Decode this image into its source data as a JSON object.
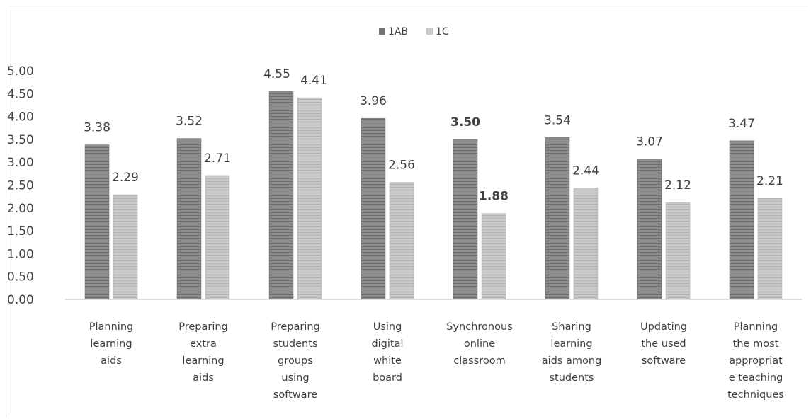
{
  "chart_data": {
    "type": "bar",
    "categories": [
      [
        "Planning",
        "learning",
        "aids"
      ],
      [
        "Preparing",
        "extra",
        "learning",
        "aids"
      ],
      [
        "Preparing",
        "students",
        "groups",
        "using",
        "software"
      ],
      [
        "Using",
        "digital",
        "white",
        "board"
      ],
      [
        "Synchronous",
        "online",
        "classroom"
      ],
      [
        "Sharing",
        "learning",
        "aids among",
        "students"
      ],
      [
        "Updating",
        "the used",
        "software"
      ],
      [
        "Planning",
        "the most",
        "appropriat",
        "e teaching",
        "techniques"
      ]
    ],
    "series": [
      {
        "name": "1AB",
        "values": [
          3.38,
          3.52,
          4.55,
          3.96,
          3.5,
          3.54,
          3.07,
          3.47
        ],
        "labels": [
          "3.38",
          "3.52",
          "4.55",
          "3.96",
          "3.50",
          "3.54",
          "3.07",
          "3.47"
        ],
        "color": "#8c8c8c"
      },
      {
        "name": "1C",
        "values": [
          2.29,
          2.71,
          4.41,
          2.56,
          1.88,
          2.44,
          2.12,
          2.21
        ],
        "labels": [
          "2.29",
          "2.71",
          "4.41",
          "2.56",
          "1.88",
          "2.44",
          "2.12",
          "2.21"
        ],
        "color": "#c8c8c8"
      }
    ],
    "yticks": [
      "0.00",
      "0.50",
      "1.00",
      "1.50",
      "2.00",
      "2.50",
      "3.00",
      "3.50",
      "4.00",
      "4.50",
      "5.00"
    ],
    "ylim": [
      0,
      5
    ],
    "legend_position": "top-center",
    "grid": false,
    "title": "",
    "xlabel": "",
    "ylabel": ""
  }
}
